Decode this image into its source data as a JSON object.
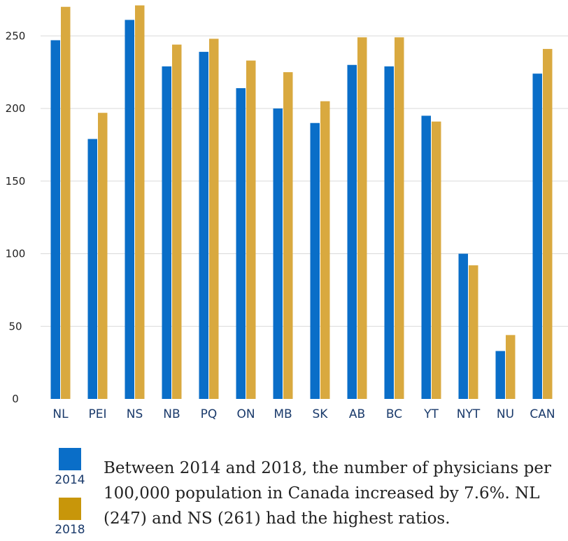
{
  "chart_data": {
    "type": "bar",
    "categories": [
      "NL",
      "PEI",
      "NS",
      "NB",
      "PQ",
      "ON",
      "MB",
      "SK",
      "AB",
      "BC",
      "YT",
      "NYT",
      "NU",
      "CAN"
    ],
    "series": [
      {
        "name": "2014",
        "color": "#0a6ec8",
        "values": [
          247,
          179,
          261,
          229,
          239,
          214,
          200,
          190,
          230,
          229,
          195,
          100,
          33,
          224
        ]
      },
      {
        "name": "2018",
        "color": "#d9a93f",
        "values": [
          270,
          197,
          271,
          244,
          248,
          233,
          225,
          205,
          249,
          249,
          191,
          92,
          44,
          241
        ]
      }
    ],
    "yticks": [
      0,
      50,
      100,
      150,
      200,
      250
    ],
    "ylim": [
      0,
      270
    ],
    "grid": true,
    "title": "",
    "xlabel": "",
    "ylabel": ""
  },
  "legend": {
    "items": [
      {
        "label": "2014",
        "color": "#0a6ec8"
      },
      {
        "label": "2018",
        "color": "#c8960a"
      }
    ]
  },
  "caption": "Between 2014 and 2018, the number of physicians per 100,000 population in Canada increased by 7.6%. NL (247) and NS (261) had the highest ratios."
}
